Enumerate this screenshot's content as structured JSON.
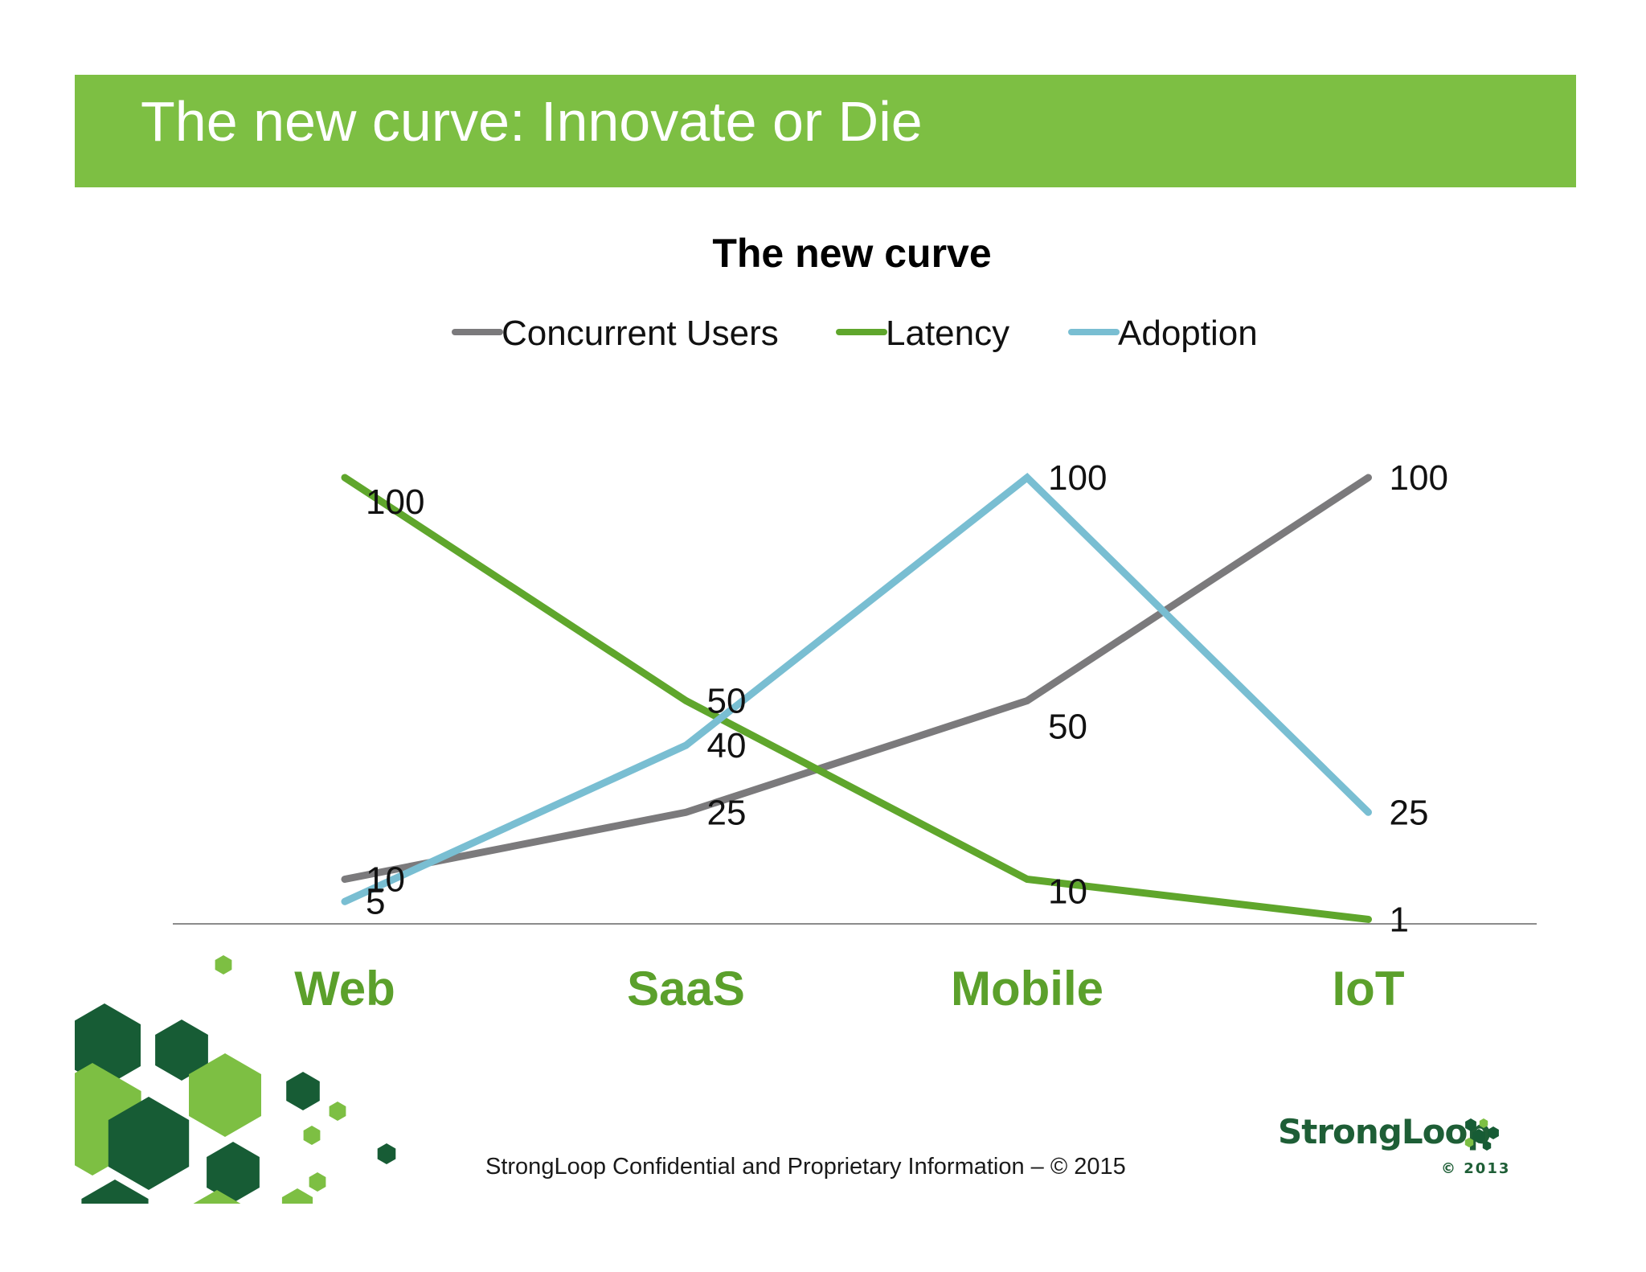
{
  "slide": {
    "title": "The new curve: Innovate or Die",
    "footer": "StrongLoop Confidential and Proprietary Information – © 2015",
    "logo": {
      "name": "StrongLoop",
      "year": "© 2013",
      "icon": "hexagon-cluster-icon"
    }
  },
  "colors": {
    "banner": "#7dbf43",
    "category_label": "#5ba02b",
    "concurrent_users": "#7b7a7c",
    "latency": "#5fa62c",
    "adoption": "#79bed2",
    "decor_dark": "#175c35",
    "decor_light": "#7dbf43"
  },
  "chart_data": {
    "type": "line",
    "title": "The new curve",
    "categories": [
      "Web",
      "SaaS",
      "Mobile",
      "IoT"
    ],
    "series": [
      {
        "name": "Concurrent Users",
        "values": [
          10,
          25,
          50,
          100
        ],
        "labels": [
          "10",
          "25",
          "50",
          "100"
        ]
      },
      {
        "name": "Latency",
        "values": [
          100,
          50,
          10,
          1
        ],
        "labels": [
          "100",
          "50",
          "10",
          "1"
        ]
      },
      {
        "name": "Adoption",
        "values": [
          5,
          40,
          100,
          25
        ],
        "labels": [
          "5",
          "40",
          "100",
          "25"
        ]
      }
    ],
    "ylim": [
      0,
      100
    ],
    "legend": "top",
    "grid": false,
    "data_labels": true
  }
}
